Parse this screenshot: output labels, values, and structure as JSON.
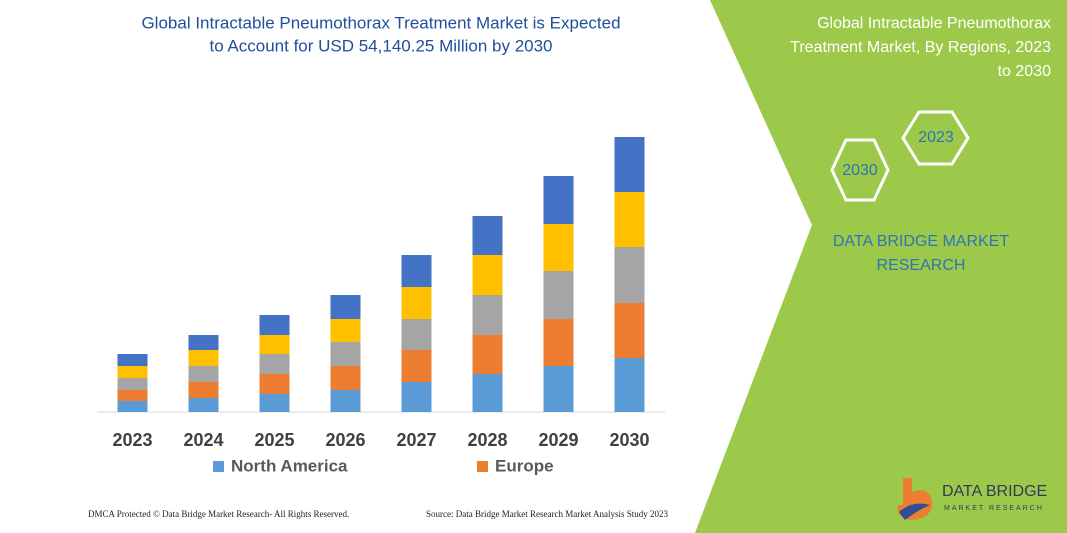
{
  "chart_data": {
    "type": "stacked-bar",
    "title": [
      "Global Intractable Pneumothorax Treatment Market is Expected",
      "to Account for USD 54,140.25 Million by 2030"
    ],
    "categories": [
      "2023",
      "2024",
      "2025",
      "2026",
      "2027",
      "2028",
      "2029",
      "2030"
    ],
    "series": [
      {
        "name": "North America",
        "color": "#5b9bd5",
        "values": [
          11,
          14,
          18,
          22,
          30,
          38,
          46,
          54
        ]
      },
      {
        "name": "Europe",
        "color": "#ed7d31",
        "values": [
          11,
          16,
          20,
          24,
          32,
          39,
          47,
          55
        ]
      },
      {
        "color": "#a5a5a5",
        "values": [
          12,
          16,
          20,
          24,
          31,
          40,
          48,
          56
        ]
      },
      {
        "color": "#ffc000",
        "values": [
          12,
          16,
          19,
          23,
          32,
          40,
          47,
          55
        ]
      },
      {
        "color": "#4472c4",
        "values": [
          12,
          15,
          20,
          24,
          32,
          39,
          48,
          55
        ]
      }
    ],
    "ylim": [
      0,
      280
    ]
  },
  "side_panel": {
    "title": [
      "Global Intractable Pneumothorax",
      "Treatment Market, By Regions, 2023",
      "to 2030"
    ],
    "hexagons": [
      "2023",
      "2030"
    ],
    "brand": [
      "DATA BRIDGE MARKET",
      "RESEARCH"
    ]
  },
  "logo": {
    "name": "DATA BRIDGE",
    "tagline": "MARKET RESEARCH"
  },
  "footer": {
    "left": "DMCA Protected © Data Bridge Market Research-  All Rights Reserved.",
    "right": "Source: Data Bridge Market Research  Market Analysis Study 2023"
  }
}
